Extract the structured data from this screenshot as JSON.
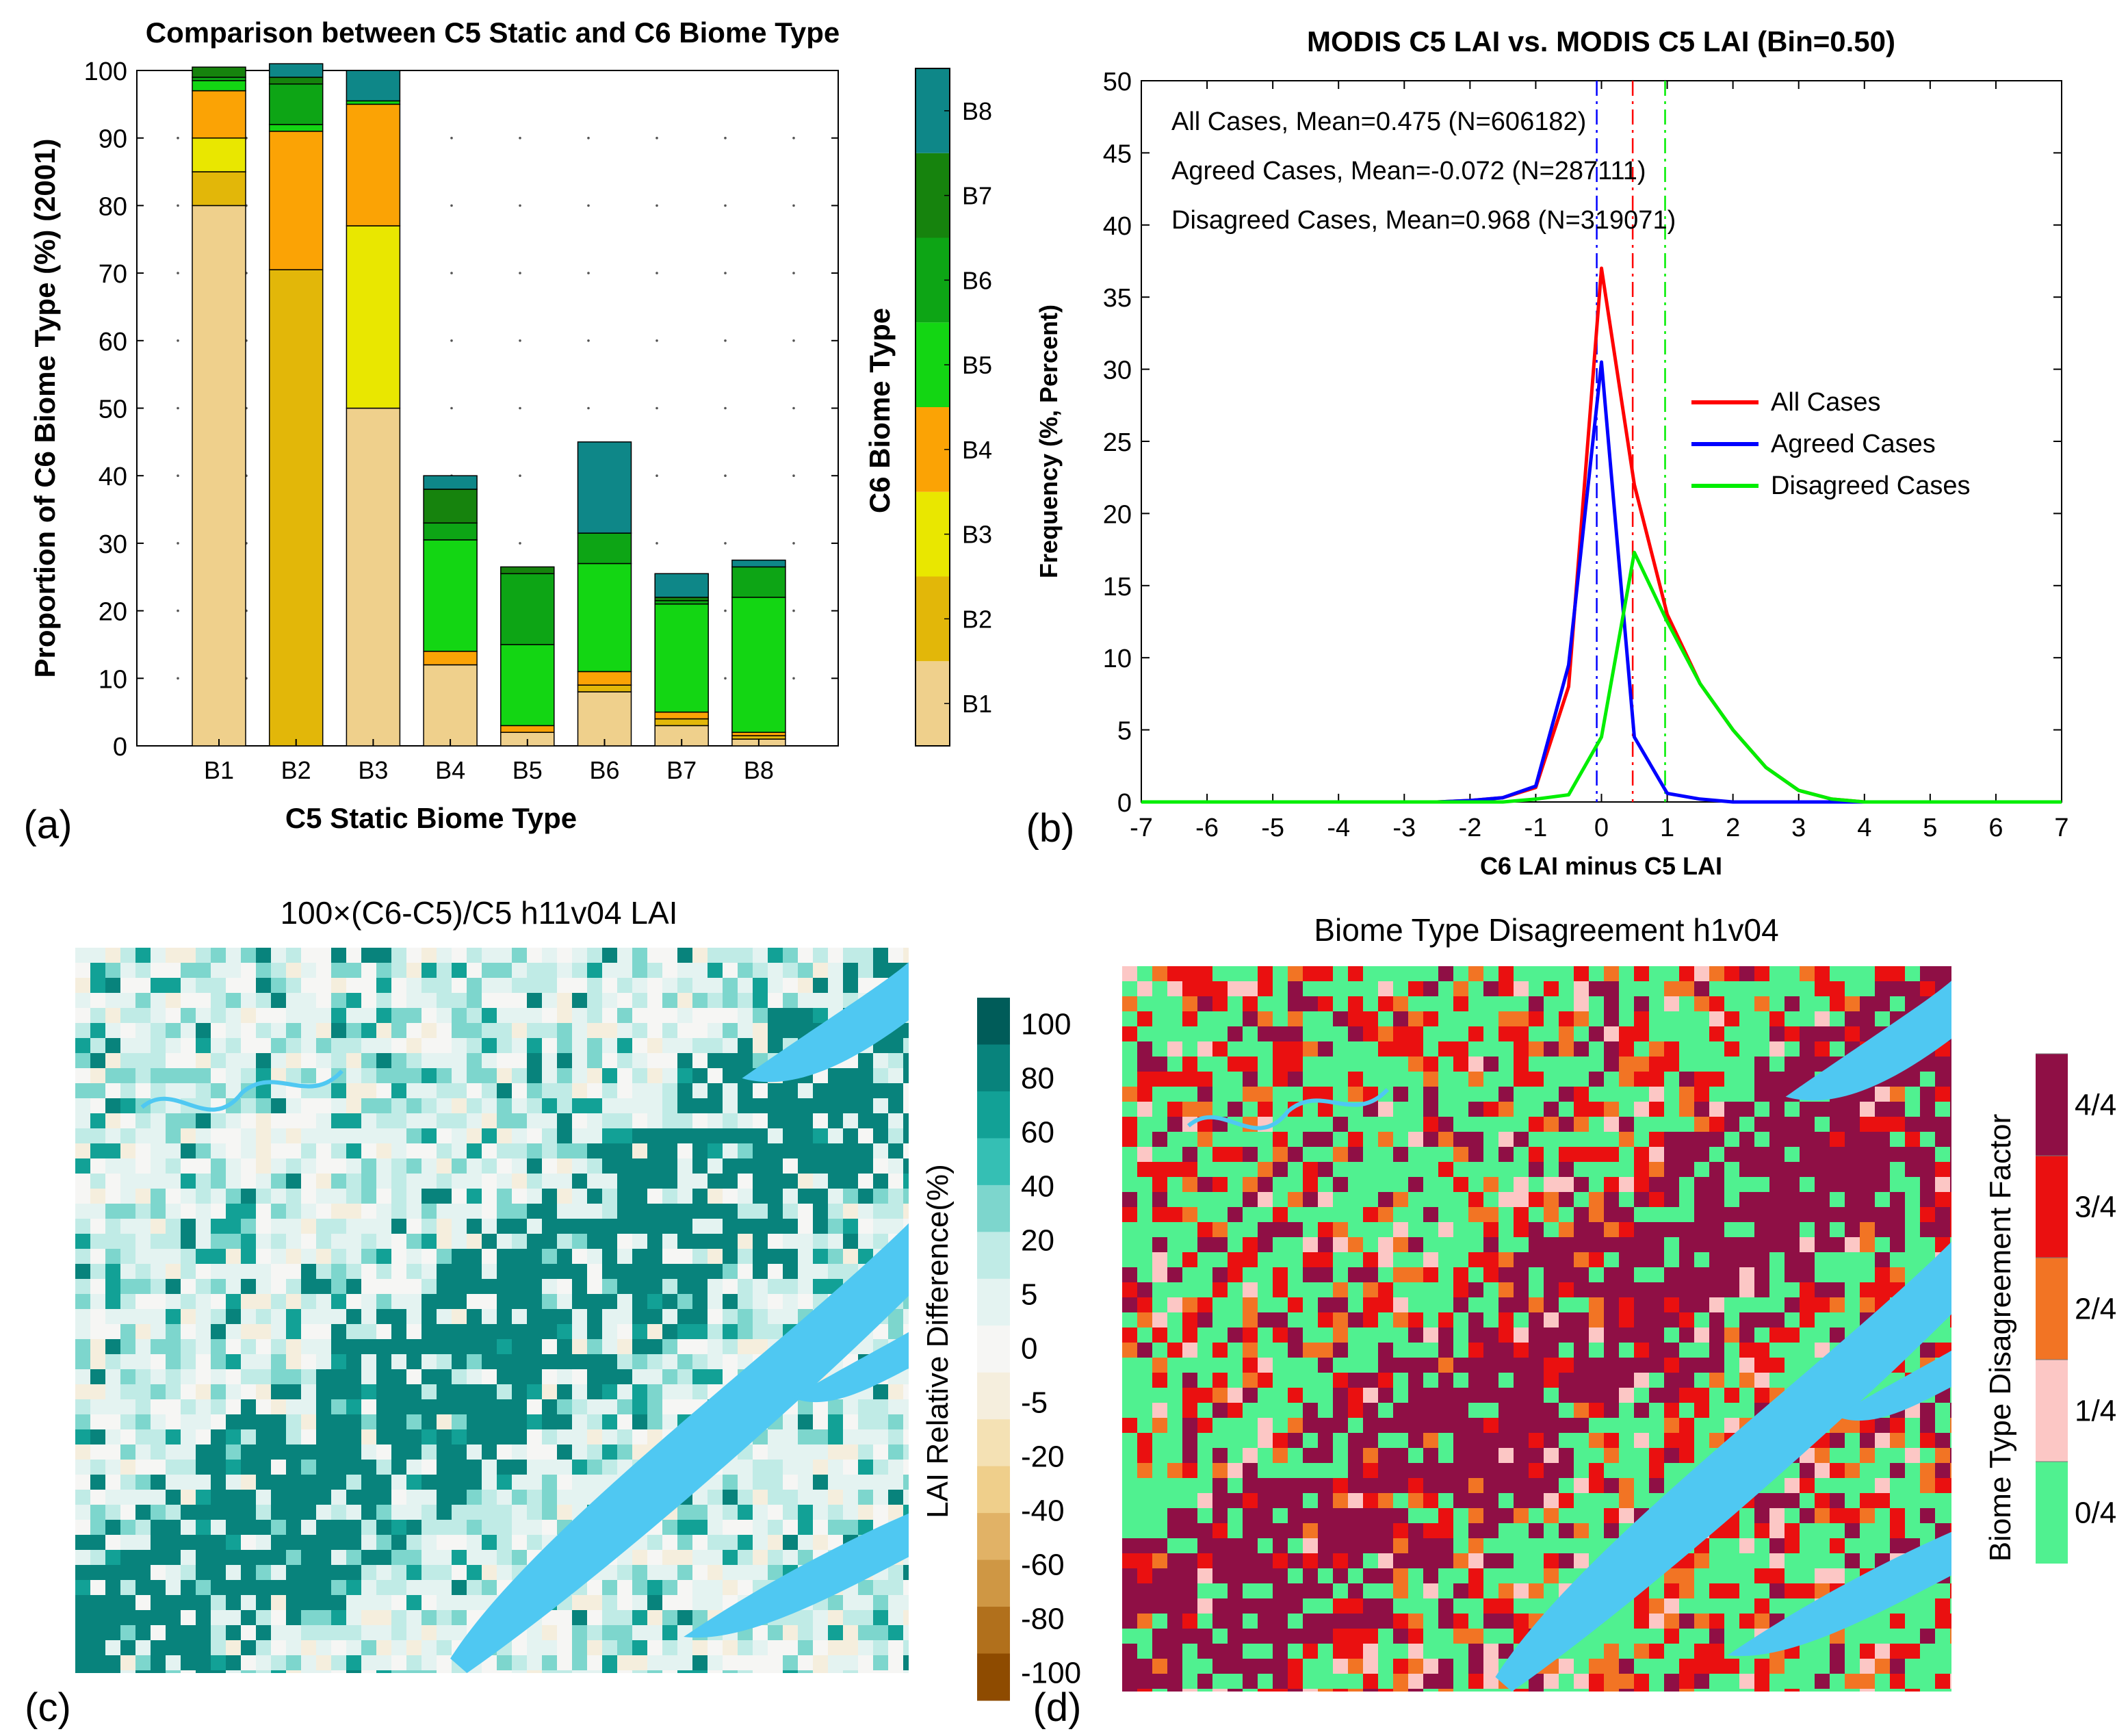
{
  "chart_data": [
    {
      "type": "bar",
      "panel": "(a)",
      "title": "Comparison between C5 Static and C6 Biome Type",
      "xlabel": "C5 Static Biome Type",
      "ylabel": "Proportion of C6 Biome Type (%) (2001)",
      "ylim": [
        0,
        100
      ],
      "yticks": [
        "0",
        "10",
        "20",
        "30",
        "40",
        "50",
        "60",
        "70",
        "80",
        "90",
        "100"
      ],
      "categories": [
        "B1",
        "B2",
        "B3",
        "B4",
        "B5",
        "B6",
        "B7",
        "B8"
      ],
      "stacked": true,
      "series": [
        {
          "name": "B1",
          "color": "#efd08c",
          "values": [
            80,
            0,
            50,
            12,
            2,
            8,
            3,
            1
          ]
        },
        {
          "name": "B2",
          "color": "#e2b709",
          "values": [
            5,
            70.5,
            0,
            0,
            0,
            1,
            1,
            0.5
          ]
        },
        {
          "name": "B3",
          "color": "#e9e700",
          "values": [
            5,
            0,
            27,
            0,
            0,
            0,
            0,
            0
          ]
        },
        {
          "name": "B4",
          "color": "#fba305",
          "values": [
            7,
            20.5,
            18,
            2,
            1,
            2,
            1,
            0.5
          ]
        },
        {
          "name": "B5",
          "color": "#13d613",
          "values": [
            1.5,
            1,
            0.5,
            16.5,
            12,
            16,
            16,
            20
          ]
        },
        {
          "name": "B6",
          "color": "#0da515",
          "values": [
            0.5,
            6,
            0,
            2.5,
            10.5,
            4.5,
            0.5,
            4.5
          ]
        },
        {
          "name": "B7",
          "color": "#16830d",
          "values": [
            1.5,
            1,
            0,
            5,
            1,
            0,
            0.5,
            0
          ]
        },
        {
          "name": "B8",
          "color": "#0e8788",
          "values": [
            0,
            2,
            4.5,
            2,
            0,
            13.5,
            3.5,
            1
          ]
        }
      ],
      "colorbar": {
        "title": "C6 Biome Type",
        "labels": [
          "B1",
          "B2",
          "B3",
          "B4",
          "B5",
          "B6",
          "B7",
          "B8"
        ]
      },
      "panel_label": "(a)"
    },
    {
      "type": "line",
      "panel": "(b)",
      "title": "MODIS C5 LAI vs. MODIS C5 LAI (Bin=0.50)",
      "xlabel": "C6 LAI minus C5 LAI",
      "ylabel": "Frequency (%, Percent)",
      "xlim": [
        -7,
        7
      ],
      "ylim": [
        0,
        50
      ],
      "xticks": [
        "-7",
        "-6",
        "-5",
        "-4",
        "-3",
        "-2",
        "-1",
        "0",
        "1",
        "2",
        "3",
        "4",
        "5",
        "6",
        "7"
      ],
      "yticks": [
        "0",
        "5",
        "10",
        "15",
        "20",
        "25",
        "30",
        "35",
        "40",
        "45",
        "50"
      ],
      "annotations": [
        "All Cases, Mean=0.475 (N=606182)",
        "Agreed Cases, Mean=-0.072 (N=287111)",
        "Disagreed Cases, Mean=0.968 (N=319071)"
      ],
      "x": [
        -7,
        -6.5,
        -6,
        -5.5,
        -5,
        -4.5,
        -4,
        -3.5,
        -3,
        -2.5,
        -2,
        -1.5,
        -1,
        -0.5,
        0,
        0.5,
        1,
        1.5,
        2,
        2.5,
        3,
        3.5,
        4,
        4.5,
        5,
        5.5,
        6,
        6.5,
        7
      ],
      "series": [
        {
          "name": "All Cases",
          "color": "#ff0000",
          "mean": 0.475,
          "values": [
            0,
            0,
            0,
            0,
            0,
            0,
            0,
            0,
            0,
            0,
            0.1,
            0.3,
            1,
            8,
            37,
            22,
            13,
            8.2,
            5,
            2.4,
            0.8,
            0.2,
            0,
            0,
            0,
            0,
            0,
            0,
            0
          ]
        },
        {
          "name": "Agreed Cases",
          "color": "#0000ff",
          "mean": -0.072,
          "values": [
            0,
            0,
            0,
            0,
            0,
            0,
            0,
            0,
            0,
            0,
            0.1,
            0.3,
            1.1,
            9.5,
            30.5,
            4.5,
            0.6,
            0.2,
            0,
            0,
            0,
            0,
            0,
            0,
            0,
            0,
            0,
            0,
            0
          ]
        },
        {
          "name": "Disagreed Cases",
          "color": "#00ee00",
          "mean": 0.968,
          "values": [
            0,
            0,
            0,
            0,
            0,
            0,
            0,
            0,
            0,
            0,
            0,
            0,
            0.2,
            0.5,
            4.5,
            17.3,
            12.5,
            8.2,
            5,
            2.4,
            0.8,
            0.2,
            0,
            0,
            0,
            0,
            0,
            0,
            0
          ]
        }
      ],
      "legend": [
        "All Cases",
        "Agreed Cases",
        "Disagreed Cases"
      ],
      "panel_label": "(b)"
    },
    {
      "type": "heatmap",
      "panel": "(c)",
      "title": "100×(C6-C5)/C5  h11v04 LAI",
      "colorbar": {
        "title": "LAI Relative Difference(%)",
        "labels": [
          "100",
          "80",
          "60",
          "40",
          "20",
          "5",
          "0",
          "-5",
          "-20",
          "-40",
          "-60",
          "-80",
          "-100"
        ],
        "colors": [
          "#005c59",
          "#08837c",
          "#12a196",
          "#35bfb4",
          "#7dd6cd",
          "#c0ebe6",
          "#e4f3f1",
          "#f6f6f4",
          "#f5eedd",
          "#f4e1b4",
          "#efcf8b",
          "#e1b266",
          "#cf9744",
          "#b1701c",
          "#8e4b00"
        ]
      },
      "panel_label": "(c)"
    },
    {
      "type": "heatmap",
      "panel": "(d)",
      "title": "Biome Type Disagreement h1v04",
      "colorbar": {
        "title": "Biome Type Disagreement Factor",
        "labels": [
          "4/4",
          "3/4",
          "2/4",
          "1/4",
          "0/4"
        ],
        "colors": [
          "#8f0f45",
          "#ea1010",
          "#f27424",
          "#fcc7c5",
          "#50f190"
        ]
      },
      "panel_label": "(d)"
    }
  ]
}
